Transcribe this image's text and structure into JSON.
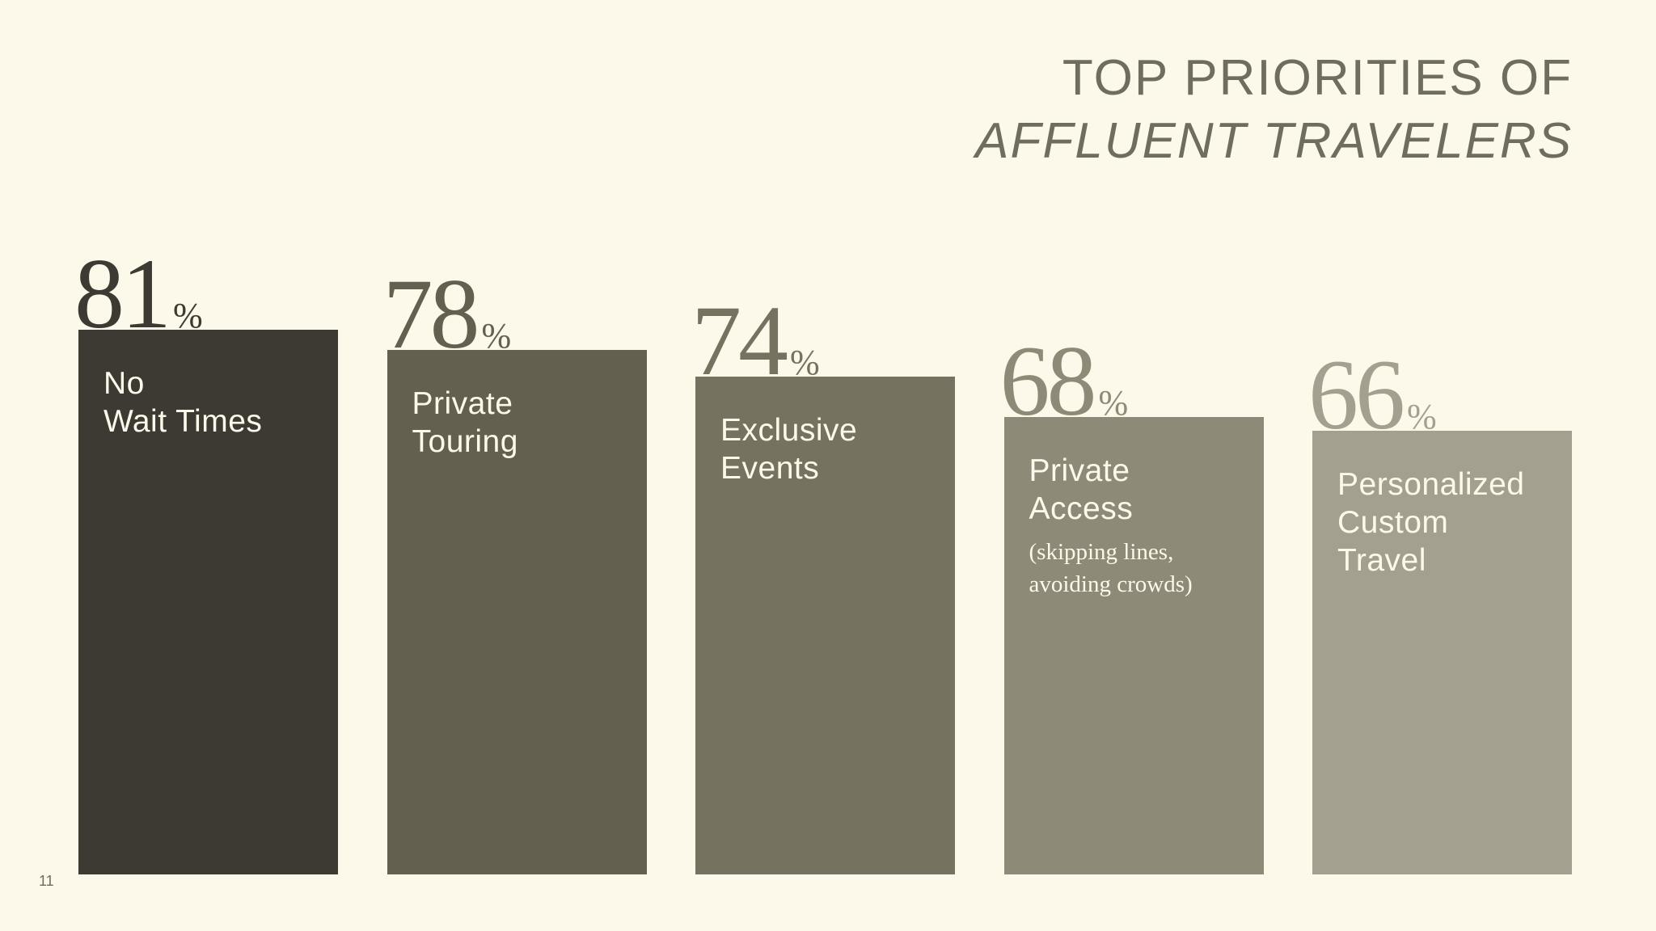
{
  "chart_data": {
    "type": "bar",
    "title": "TOP PRIORITIES OF",
    "subtitle": "AFFLUENT TRAVELERS",
    "categories": [
      "No\nWait Times",
      "Private\nTouring",
      "Exclusive\nEvents",
      "Private\nAccess",
      "Personalized\nCustom\nTravel"
    ],
    "values": [
      81,
      78,
      74,
      68,
      66
    ],
    "value_labels": [
      "81%",
      "78%",
      "74%",
      "68%",
      "66%"
    ],
    "colors": [
      "#3c3a32",
      "#636050",
      "#75725f",
      "#8d8a78",
      "#a3a08f"
    ],
    "note": {
      "category": "Private\nAccess",
      "text": "(skipping lines,\navoiding crowds)"
    },
    "ylim": [
      0,
      100
    ]
  },
  "page_number": 11
}
